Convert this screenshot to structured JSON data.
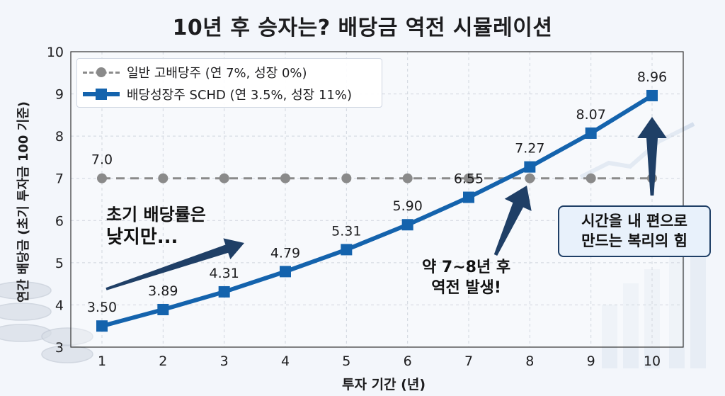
{
  "title": "10년 후 승자는? 배당금 역전 시뮬레이션",
  "legend": {
    "items": [
      {
        "label": "일반 고배당주 (연 7%, 성장 0%)"
      },
      {
        "label": "배당성장주 SCHD (연 3.5%, 성장 11%)"
      }
    ]
  },
  "annotations": {
    "left_line1": "초기 배당률은",
    "left_line2": "낮지만...",
    "mid_line1": "약 7~8년 후",
    "mid_line2": "역전 발생!",
    "box_line1": "시간을 내 편으로",
    "box_line2": "만드는 복리의 힘"
  },
  "colors": {
    "high_yield": "#8a8a8a",
    "growth": "#1463ad",
    "arrow": "#1f3f66"
  },
  "chart_data": {
    "type": "line",
    "title": "10년 후 승자는? 배당금 역전 시뮬레이션",
    "xlabel": "투자 기간 (년)",
    "ylabel": "연간 배당금 (초기 투자금 100 기준)",
    "x": [
      1,
      2,
      3,
      4,
      5,
      6,
      7,
      8,
      9,
      10
    ],
    "xlim": [
      1,
      10
    ],
    "ylim": [
      3,
      10
    ],
    "yticks": [
      3,
      4,
      5,
      6,
      7,
      8,
      9,
      10
    ],
    "grid": true,
    "legend_position": "top-left",
    "series": [
      {
        "name": "일반 고배당주 (연 7%, 성장 0%)",
        "style": "dashed",
        "marker": "circle",
        "values": [
          7,
          7,
          7,
          7,
          7,
          7,
          7,
          7,
          7,
          7
        ],
        "data_labels": [
          {
            "x": 1,
            "text": "7.0"
          }
        ]
      },
      {
        "name": "배당성장주 SCHD (연 3.5%, 성장 11%)",
        "style": "solid",
        "marker": "square",
        "values": [
          3.5,
          3.89,
          4.31,
          4.79,
          5.31,
          5.9,
          6.55,
          7.27,
          8.07,
          8.96
        ],
        "data_labels": [
          {
            "x": 1,
            "text": "3.50"
          },
          {
            "x": 2,
            "text": "3.89"
          },
          {
            "x": 3,
            "text": "4.31"
          },
          {
            "x": 4,
            "text": "4.79"
          },
          {
            "x": 5,
            "text": "5.31"
          },
          {
            "x": 6,
            "text": "5.90"
          },
          {
            "x": 7,
            "text": "6.55"
          },
          {
            "x": 8,
            "text": "7.27"
          },
          {
            "x": 9,
            "text": "8.07"
          },
          {
            "x": 10,
            "text": "8.96"
          }
        ]
      }
    ]
  }
}
